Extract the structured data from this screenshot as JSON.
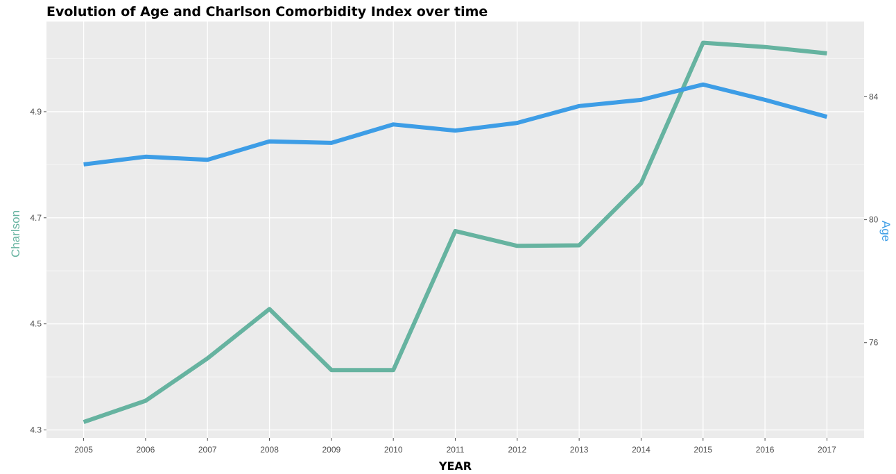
{
  "chart_data": {
    "type": "line",
    "title": "Evolution of Age and Charlson Comorbidity Index over time",
    "xlabel": "YEAR",
    "ylabel_left": "Charlson",
    "ylabel_right": "Age",
    "x": [
      2005,
      2006,
      2007,
      2008,
      2009,
      2010,
      2011,
      2012,
      2013,
      2014,
      2015,
      2016,
      2017
    ],
    "xlim": [
      2004.4,
      2017.6
    ],
    "ylim_left": [
      4.285,
      5.07
    ],
    "ylim_right": [
      72.9,
      86.45
    ],
    "yticks_left": [
      4.3,
      4.5,
      4.7,
      4.9
    ],
    "yticks_right": [
      76,
      80,
      84
    ],
    "grid": true,
    "series": [
      {
        "name": "Charlson",
        "axis": "left",
        "color": "#66b3a0",
        "values": [
          4.315,
          4.355,
          4.435,
          4.528,
          4.413,
          4.413,
          4.675,
          4.647,
          4.648,
          4.765,
          5.03,
          5.022,
          5.01
        ]
      },
      {
        "name": "Age",
        "axis": "right",
        "color": "#3d9de6",
        "values": [
          81.8,
          82.05,
          81.95,
          82.55,
          82.5,
          83.1,
          82.9,
          83.15,
          83.7,
          83.9,
          84.4,
          83.9,
          83.35
        ]
      }
    ],
    "colors": {
      "panel": "#ebebeb",
      "grid": "#ffffff",
      "tick": "#4d4d4d"
    }
  }
}
